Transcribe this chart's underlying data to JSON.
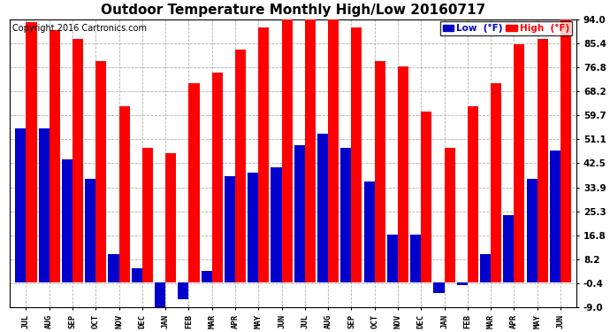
{
  "title": "Outdoor Temperature Monthly High/Low 20160717",
  "copyright": "Copyright 2016 Cartronics.com",
  "legend_low": "Low  (°F)",
  "legend_high": "High  (°F)",
  "months": [
    "JUL",
    "AUG",
    "SEP",
    "OCT",
    "NOV",
    "DEC",
    "JAN",
    "FEB",
    "MAR",
    "APR",
    "MAY",
    "JUN",
    "JUL",
    "AUG",
    "SEP",
    "OCT",
    "NOV",
    "DEC",
    "JAN",
    "FEB",
    "MAR",
    "APR",
    "MAY",
    "JUN"
  ],
  "high": [
    93.0,
    90.0,
    87.0,
    79.0,
    63.0,
    48.0,
    46.0,
    71.0,
    75.0,
    83.0,
    91.0,
    94.0,
    94.0,
    94.0,
    91.0,
    79.0,
    77.0,
    61.0,
    48.0,
    63.0,
    71.0,
    85.0,
    87.0,
    94.0
  ],
  "low": [
    55.0,
    55.0,
    44.0,
    37.0,
    10.0,
    5.0,
    -9.0,
    -6.0,
    4.0,
    38.0,
    39.0,
    41.0,
    49.0,
    53.0,
    48.0,
    36.0,
    17.0,
    17.0,
    -4.0,
    -1.0,
    10.0,
    24.0,
    37.0,
    47.0
  ],
  "ylim": [
    -9.0,
    94.0
  ],
  "yticks": [
    -9.0,
    -0.4,
    8.2,
    16.8,
    25.3,
    33.9,
    42.5,
    51.1,
    59.7,
    68.2,
    76.8,
    85.4,
    94.0
  ],
  "bar_color_high": "#ff0000",
  "bar_color_low": "#0000cc",
  "bg_color": "#ffffff",
  "grid_color": "#b0b0b0",
  "title_fontsize": 11,
  "copyright_fontsize": 7,
  "bar_width": 0.46
}
